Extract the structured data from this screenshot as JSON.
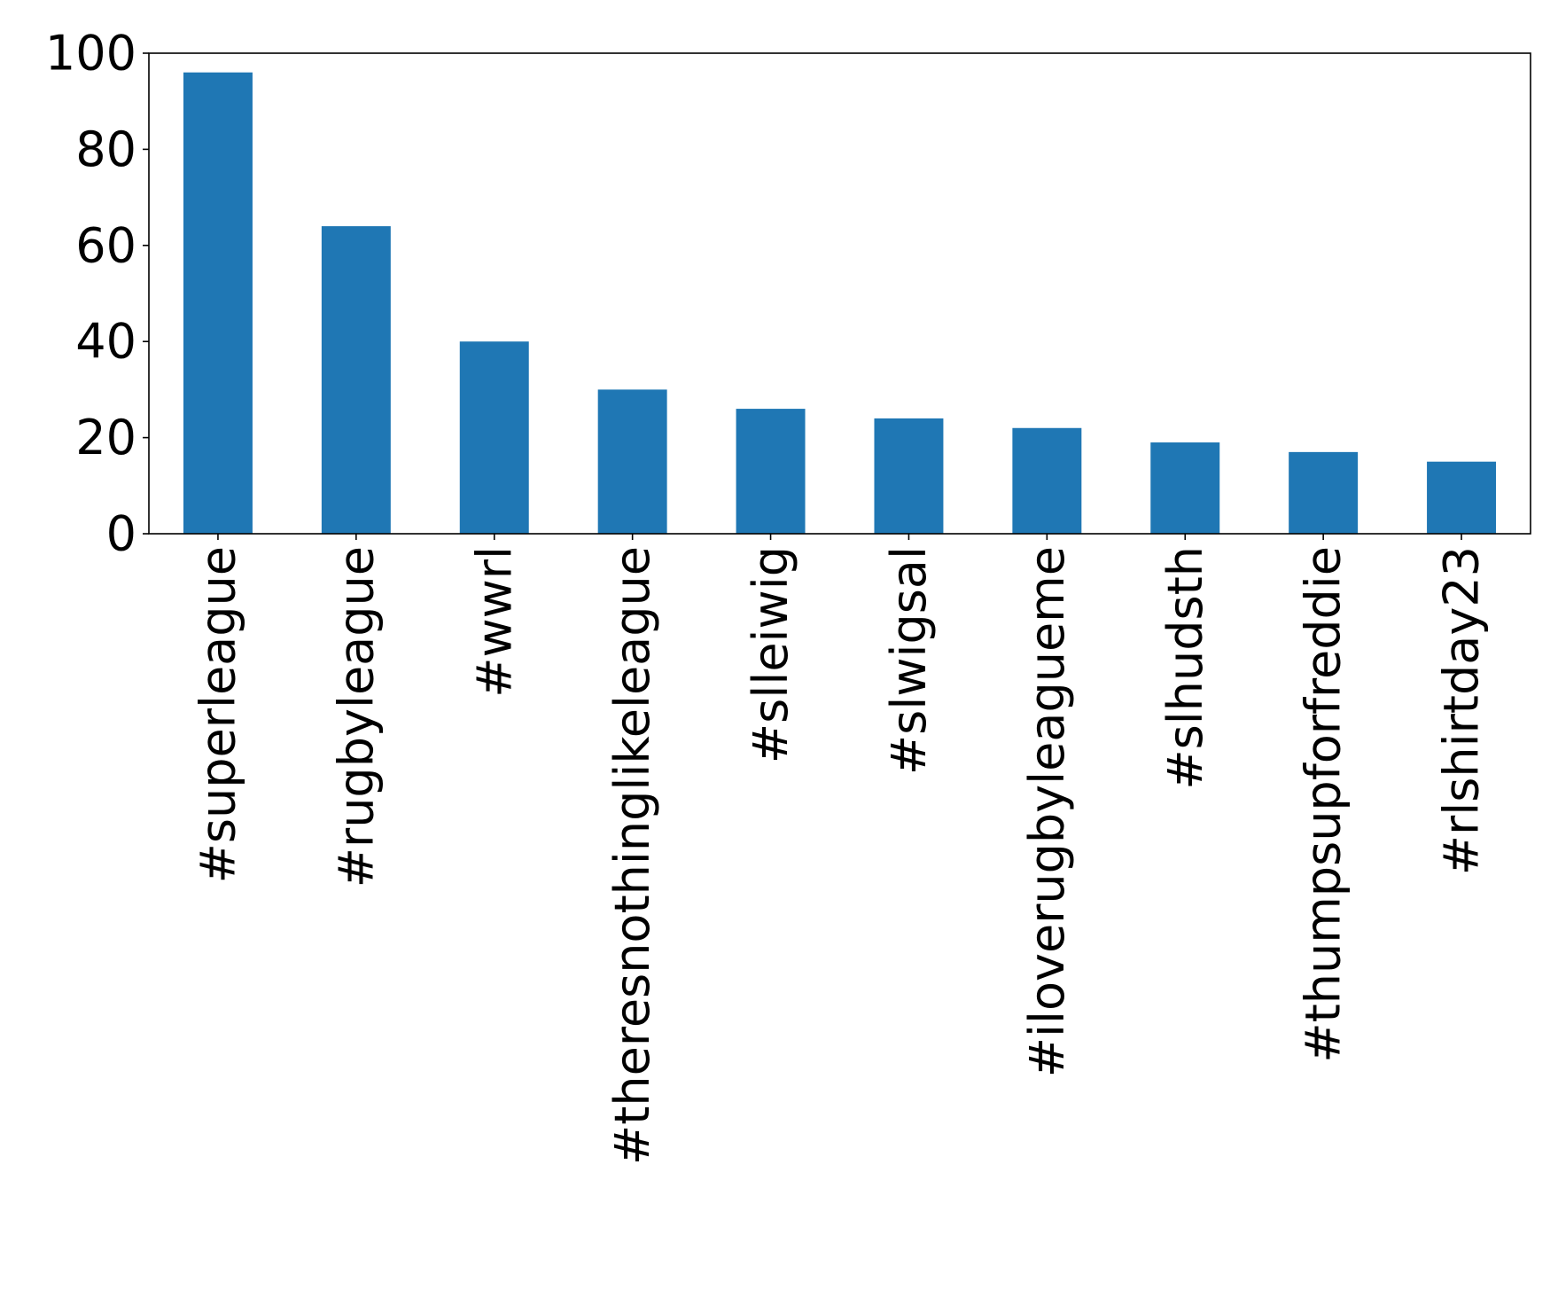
{
  "chart_data": {
    "type": "bar",
    "categories": [
      "#superleague",
      "#rugbyleague",
      "#wwrl",
      "#theresnothinglikeleague",
      "#slleiwig",
      "#slwigsal",
      "#iloverugbyleagueme",
      "#slhudsth",
      "#thumpsupforfreddie",
      "#rlshirtday23"
    ],
    "values": [
      96,
      64,
      40,
      30,
      26,
      24,
      22,
      19,
      17,
      15
    ],
    "ylim": [
      0,
      100
    ],
    "yticks": [
      0,
      20,
      40,
      60,
      80,
      100
    ],
    "title": "",
    "xlabel": "",
    "ylabel": "",
    "grid": false,
    "bar_color": "#1f77b4"
  }
}
